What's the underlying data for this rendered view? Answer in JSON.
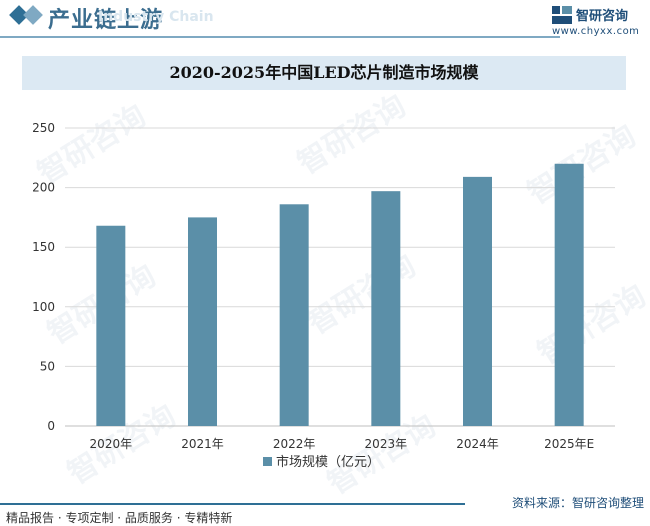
{
  "header": {
    "title": "产业链上游",
    "subtitle": "Industry Chain",
    "brand_name": "智研咨询",
    "brand_url": "www.chyxx.com"
  },
  "watermark": "智研咨询",
  "chart_data": {
    "type": "bar",
    "title": "2020-2025年中国LED芯片制造市场规模",
    "categories": [
      "2020年",
      "2021年",
      "2022年",
      "2023年",
      "2024年",
      "2025年E"
    ],
    "series": [
      {
        "name": "市场规模（亿元）",
        "values": [
          168,
          175,
          186,
          197,
          209,
          220
        ]
      }
    ],
    "yticks": [
      0,
      50,
      100,
      150,
      200,
      250
    ],
    "ylim": [
      0,
      250
    ],
    "xlabel": "",
    "ylabel": "",
    "grid": true,
    "legend_position": "bottom",
    "colors": {
      "bar": "#5b8fa8",
      "grid": "#d9d9d9",
      "axis": "#bfbfbf"
    }
  },
  "footer": {
    "left": "精品报告 · 专项定制 · 品质服务 · 专精特新",
    "right": "资料来源：智研咨询整理"
  }
}
